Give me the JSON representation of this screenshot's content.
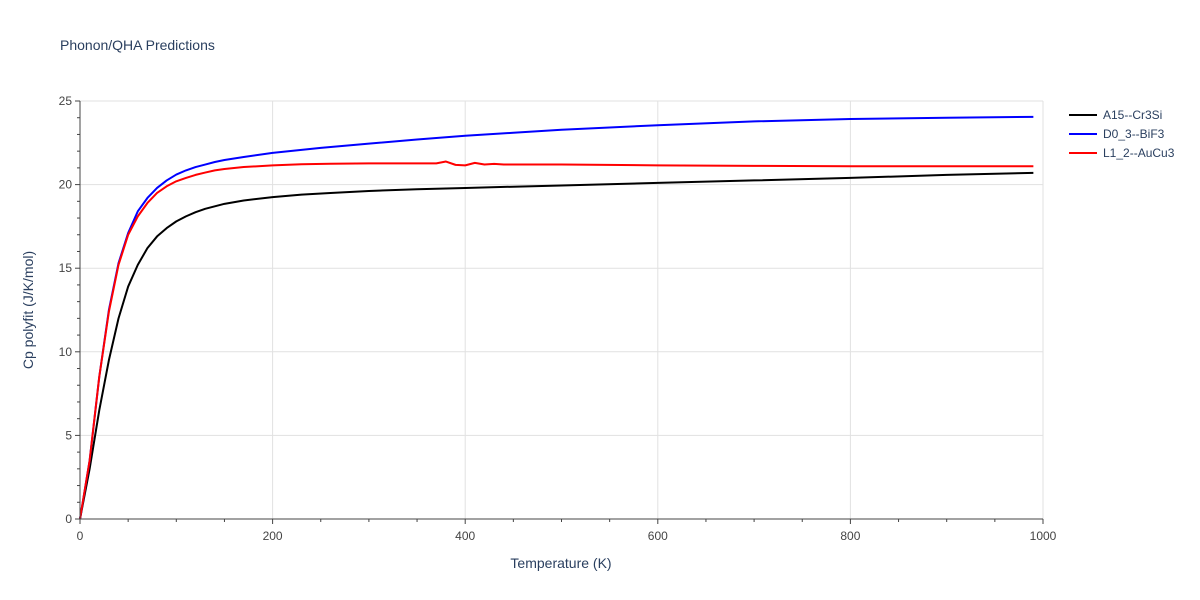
{
  "chart_data": {
    "type": "line",
    "title": "Phonon/QHA Predictions",
    "xlabel": "Temperature (K)",
    "ylabel": "Cp polyfit (J/K/mol)",
    "xlim": [
      0,
      1000
    ],
    "ylim": [
      0,
      25
    ],
    "x_ticks": [
      0,
      200,
      400,
      600,
      800,
      1000
    ],
    "y_ticks": [
      0,
      5,
      10,
      15,
      20,
      25
    ],
    "grid": true,
    "legend_position": "top-right",
    "series": [
      {
        "name": "A15--Cr3Si",
        "color": "#000000",
        "x": [
          0,
          10,
          20,
          30,
          40,
          50,
          60,
          70,
          80,
          90,
          100,
          110,
          120,
          130,
          140,
          150,
          170,
          200,
          230,
          260,
          300,
          350,
          400,
          500,
          600,
          700,
          800,
          900,
          990
        ],
        "y": [
          0,
          3.0,
          6.5,
          9.5,
          12.0,
          13.9,
          15.2,
          16.2,
          16.9,
          17.4,
          17.8,
          18.1,
          18.35,
          18.55,
          18.7,
          18.85,
          19.05,
          19.25,
          19.4,
          19.5,
          19.62,
          19.72,
          19.8,
          19.95,
          20.1,
          20.25,
          20.4,
          20.58,
          20.7
        ]
      },
      {
        "name": "D0_3--BiF3",
        "color": "#0000ff",
        "x": [
          0,
          10,
          20,
          30,
          40,
          50,
          60,
          70,
          80,
          90,
          100,
          110,
          120,
          130,
          140,
          150,
          170,
          200,
          250,
          300,
          350,
          400,
          450,
          500,
          600,
          700,
          800,
          900,
          990
        ],
        "y": [
          0,
          3.5,
          8.5,
          12.5,
          15.3,
          17.1,
          18.4,
          19.2,
          19.8,
          20.25,
          20.6,
          20.85,
          21.05,
          21.2,
          21.35,
          21.47,
          21.65,
          21.9,
          22.2,
          22.45,
          22.7,
          22.92,
          23.1,
          23.28,
          23.55,
          23.78,
          23.92,
          24.0,
          24.05
        ]
      },
      {
        "name": "L1_2--AuCu3",
        "color": "#ff0000",
        "x": [
          0,
          10,
          20,
          30,
          40,
          50,
          60,
          70,
          80,
          90,
          100,
          110,
          120,
          130,
          140,
          150,
          170,
          200,
          230,
          260,
          300,
          350,
          370,
          380,
          390,
          400,
          410,
          420,
          430,
          440,
          500,
          600,
          700,
          800,
          900,
          990
        ],
        "y": [
          0,
          3.5,
          8.5,
          12.4,
          15.2,
          17.0,
          18.1,
          18.9,
          19.5,
          19.9,
          20.2,
          20.4,
          20.58,
          20.72,
          20.85,
          20.93,
          21.05,
          21.15,
          21.22,
          21.25,
          21.27,
          21.27,
          21.27,
          21.38,
          21.18,
          21.15,
          21.3,
          21.2,
          21.24,
          21.2,
          21.2,
          21.15,
          21.12,
          21.1,
          21.1,
          21.1
        ]
      }
    ]
  }
}
